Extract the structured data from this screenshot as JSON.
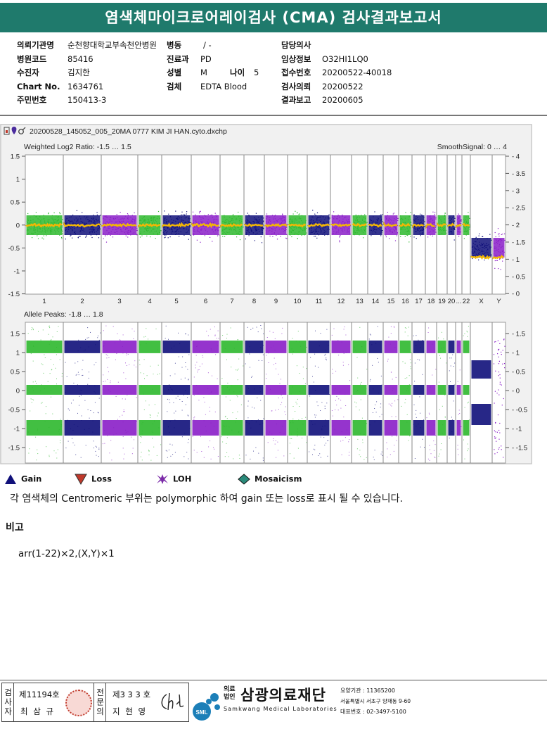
{
  "title": "염색체마이크로어레이검사 (CMA) 검사결과보고서",
  "info": {
    "left": [
      {
        "label": "의뢰기관명",
        "value": "순천향대학교부속천안병원"
      },
      {
        "label": "병원코드",
        "value": "85416"
      },
      {
        "label": "수진자",
        "value": "김지한"
      },
      {
        "label": "Chart No.",
        "value": "1634761"
      },
      {
        "label": "주민번호",
        "value": "150413-3"
      }
    ],
    "mid": [
      {
        "label": "병동",
        "value": "/ -"
      },
      {
        "label": "진료과",
        "value": "PD"
      },
      {
        "label": "성별",
        "value": "M",
        "label2": "나이",
        "value2": "5"
      },
      {
        "label": "검체",
        "value": "EDTA Blood"
      }
    ],
    "right": [
      {
        "label": "담당의사",
        "value": ""
      },
      {
        "label": "임상정보",
        "value": "O32HI1LQ0"
      },
      {
        "label": "접수번호",
        "value": "20200522-40018"
      },
      {
        "label": "검사의뢰",
        "value": "20200522"
      },
      {
        "label": "결과보고",
        "value": "20200605"
      }
    ]
  },
  "plot": {
    "filename": "20200528_145052_005_20MA 0777 KIM JI HAN.cyto.dxchp",
    "top_title": "Weighted Log2 Ratio: -1.5 … 1.5",
    "top_right_title": "SmoothSignal: 0 … 4",
    "bottom_title": "Allele Peaks: -1.8 … 1.8",
    "top_left_ticks": [
      "1.5",
      "1",
      "0.5",
      "0",
      "-0.5",
      "-1",
      "-1.5"
    ],
    "top_right_ticks": [
      "4",
      "3.5",
      "3",
      "2.5",
      "2",
      "1.5",
      "1",
      "0.5",
      "0"
    ],
    "bottom_left_ticks": [
      "1.5",
      "1",
      "0.5",
      "0",
      "-0.5",
      "-1",
      "-1.5"
    ],
    "bottom_right_ticks": [
      "1.5",
      "1",
      "0.5",
      "0",
      "-0.5",
      "-1",
      "-1.5"
    ],
    "chromosomes": [
      "1",
      "2",
      "3",
      "4",
      "5",
      "6",
      "7",
      "8",
      "9",
      "10",
      "11",
      "12",
      "13",
      "14",
      "15",
      "16",
      "17",
      "18",
      "19",
      "20",
      "...",
      "22",
      "X",
      "Y"
    ],
    "colors": {
      "green": "#2eb82e",
      "navy": "#10107a",
      "purple": "#8a1ec8",
      "yellow": "#f2b705"
    }
  },
  "legend": [
    {
      "label": "Gain",
      "icon": "triangle-up",
      "color": "#10107a"
    },
    {
      "label": "Loss",
      "icon": "triangle-down",
      "color": "#c0392b"
    },
    {
      "label": "LOH",
      "icon": "star-4",
      "color": "#7b2aa8"
    },
    {
      "label": "Mosaicism",
      "icon": "diamond",
      "color": "#2a8a7a"
    }
  ],
  "note": "각 염색체의 Centromeric 부위는 polymorphic 하여 gain 또는 loss로 표시 될 수 있습니다.",
  "remark_heading": "비고",
  "result": "arr(1-22)×2,(X,Y)×1",
  "footer": {
    "col1_label": "검사자",
    "col1_no": "제11194호",
    "col1_name": "최 삼 규",
    "col2_label": "전문의",
    "col2_no": "제3 3 3 호",
    "col2_name": "지 현 영",
    "org_prefix": "의료 법인",
    "org_name": "삼광의료재단",
    "org_en": "Samkwang Medical Laboratories",
    "org_logo": "SML",
    "line1": "요양기관 : 11365200",
    "line2": "서울특별시 서초구 양재동 9-60",
    "line3": "대표번호 : 02-3497-5100"
  }
}
